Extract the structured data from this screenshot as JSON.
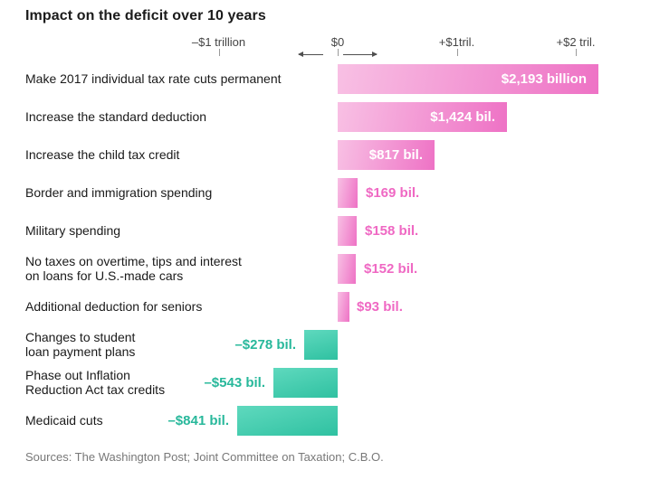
{
  "title": "Impact on the deficit over 10 years",
  "source": "Sources: The Washington Post; Joint Committee on Taxation; C.B.O.",
  "colors": {
    "pink_light": "#f8c0e4",
    "pink_dark": "#ee72c5",
    "pink_text": "#ef68c3",
    "teal_light": "#5fd9be",
    "teal_dark": "#2fc1a1",
    "teal_text": "#28b89b"
  },
  "chart_data": {
    "type": "bar",
    "orientation": "horizontal",
    "title": "Impact on the deficit over 10 years",
    "units": "billions of U.S. dollars",
    "xlabel": "",
    "ylabel": "",
    "xlim_trillions": [
      -1,
      2.25
    ],
    "legend": "none",
    "grid": false,
    "axis_ticks": [
      {
        "label": "–$1 trillion",
        "trillions": -1
      },
      {
        "label": "$0",
        "trillions": 0
      },
      {
        "label": "+$1tril.",
        "trillions": 1
      },
      {
        "label": "+$2 tril.",
        "trillions": 2
      }
    ],
    "positive_meaning": "adds to deficit (pink, extends right)",
    "negative_meaning": "reduces deficit (teal, extends left)",
    "categories": [
      "Make 2017 individual tax rate cuts permanent",
      "Increase the standard deduction",
      "Increase the child tax credit",
      "Border and immigration spending",
      "Military spending",
      "No taxes on overtime, tips and interest on loans for U.S.-made cars",
      "Additional deduction for seniors",
      "Changes to student loan payment plans",
      "Phase out Inflation Reduction Act tax credits",
      "Medicaid cuts"
    ],
    "values": [
      2193,
      1424,
      817,
      169,
      158,
      152,
      93,
      -278,
      -543,
      -841
    ],
    "bars": [
      {
        "label": "Make 2017 individual tax rate cuts permanent",
        "value_billions": 2193,
        "value_label": "$2,193 billion",
        "value_label_placement": "inside-right"
      },
      {
        "label": "Increase the standard deduction",
        "value_billions": 1424,
        "value_label": "$1,424 bil.",
        "value_label_placement": "inside-right"
      },
      {
        "label": "Increase the child tax credit",
        "value_billions": 817,
        "value_label": "$817 bil.",
        "value_label_placement": "inside-right"
      },
      {
        "label": "Border and immigration spending",
        "value_billions": 169,
        "value_label": "$169 bil.",
        "value_label_placement": "outside-right"
      },
      {
        "label": "Military spending",
        "value_billions": 158,
        "value_label": "$158 bil.",
        "value_label_placement": "outside-right"
      },
      {
        "label": "No taxes on overtime, tips and interest\non loans for U.S.-made cars",
        "value_billions": 152,
        "value_label": "$152 bil.",
        "value_label_placement": "outside-right"
      },
      {
        "label": "Additional deduction for seniors",
        "value_billions": 93,
        "value_label": "$93 bil.",
        "value_label_placement": "outside-right"
      },
      {
        "label": "Changes to student\nloan payment plans",
        "value_billions": -278,
        "value_label": "–$278 bil.",
        "value_label_placement": "outside-left"
      },
      {
        "label": "Phase out Inflation\nReduction Act tax credits",
        "value_billions": -543,
        "value_label": "–$543 bil.",
        "value_label_placement": "outside-left"
      },
      {
        "label": "Medicaid cuts",
        "value_billions": -841,
        "value_label": "–$841 bil.",
        "value_label_placement": "outside-left"
      }
    ]
  }
}
